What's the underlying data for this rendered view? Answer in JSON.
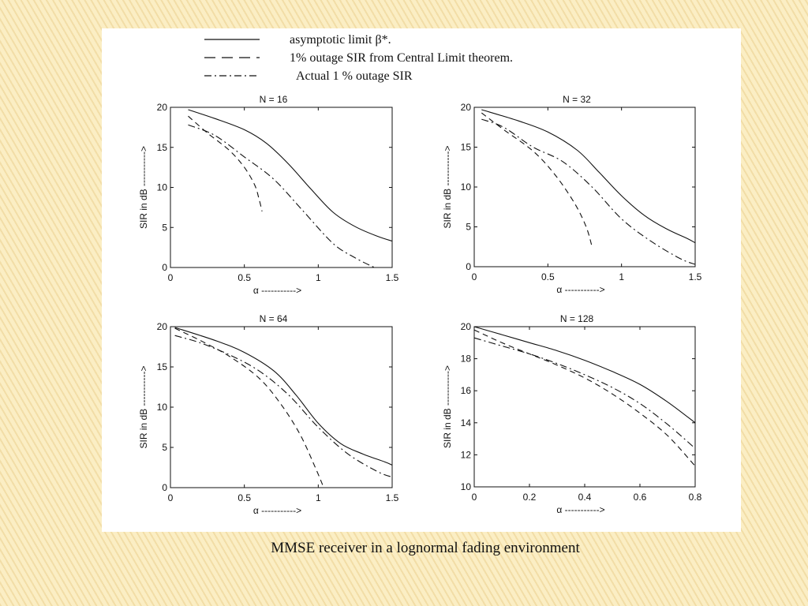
{
  "caption": "MMSE receiver in a lognormal fading environment",
  "legend": [
    {
      "label": "asymptotic limit β*.",
      "style": "solid"
    },
    {
      "label": "1% outage SIR from Central Limit theorem.",
      "style": "dashed"
    },
    {
      "label": "Actual 1 % outage SIR",
      "style": "dashdot"
    }
  ],
  "colors": {
    "background": "#fbeec4",
    "panel": "#ffffff",
    "ink": "#111111"
  },
  "chart_data": [
    {
      "type": "line",
      "title": "N = 16",
      "xlabel": "α ----------->",
      "ylabel": "SIR in dB ----------->",
      "xlim": [
        0,
        1.5
      ],
      "ylim": [
        0,
        20
      ],
      "xticks": [
        0,
        0.5,
        1,
        1.5
      ],
      "xticklabels": [
        "0",
        "0.5",
        "1",
        "1.5"
      ],
      "yticks": [
        0,
        5,
        10,
        15,
        20
      ],
      "yticklabels": [
        "0",
        "5",
        "10",
        "15",
        "20"
      ],
      "series": [
        {
          "name": "asymptotic limit β*.",
          "style": "solid",
          "x": [
            0.12,
            0.3,
            0.5,
            0.65,
            0.8,
            0.95,
            1.1,
            1.25,
            1.4,
            1.5
          ],
          "y": [
            19.7,
            18.6,
            17.2,
            15.5,
            12.9,
            9.8,
            6.9,
            5.1,
            3.9,
            3.3
          ]
        },
        {
          "name": "1% outage SIR from Central Limit theorem.",
          "style": "dashed",
          "x": [
            0.12,
            0.25,
            0.4,
            0.5,
            0.57,
            0.6,
            0.62
          ],
          "y": [
            18.9,
            16.8,
            14.6,
            12.5,
            10.3,
            8.5,
            7.0
          ]
        },
        {
          "name": "Actual 1 % outage SIR",
          "style": "dashdot",
          "x": [
            0.12,
            0.3,
            0.5,
            0.7,
            0.9,
            1.1,
            1.25,
            1.38
          ],
          "y": [
            17.8,
            16.5,
            13.8,
            11.0,
            7.0,
            3.0,
            1.2,
            0.0
          ]
        }
      ]
    },
    {
      "type": "line",
      "title": "N = 32",
      "xlabel": "α ----------->",
      "ylabel": "SIR in dB ----------->",
      "xlim": [
        0,
        1.5
      ],
      "ylim": [
        0,
        20
      ],
      "xticks": [
        0,
        0.5,
        1,
        1.5
      ],
      "xticklabels": [
        "0",
        "0.5",
        "1",
        "1.5"
      ],
      "yticks": [
        0,
        5,
        10,
        15,
        20
      ],
      "yticklabels": [
        "0",
        "5",
        "10",
        "15",
        "20"
      ],
      "series": [
        {
          "name": "asymptotic limit β*.",
          "style": "solid",
          "x": [
            0.05,
            0.3,
            0.5,
            0.7,
            0.85,
            1.0,
            1.15,
            1.3,
            1.45,
            1.5
          ],
          "y": [
            19.7,
            18.3,
            16.9,
            14.6,
            11.8,
            8.9,
            6.5,
            4.8,
            3.5,
            3.0
          ]
        },
        {
          "name": "1% outage SIR from Central Limit theorem.",
          "style": "dashed",
          "x": [
            0.05,
            0.2,
            0.4,
            0.55,
            0.68,
            0.76,
            0.8
          ],
          "y": [
            19.3,
            17.2,
            14.5,
            11.5,
            8.0,
            5.0,
            2.5
          ]
        },
        {
          "name": "Actual 1 % outage SIR",
          "style": "dashdot",
          "x": [
            0.05,
            0.2,
            0.4,
            0.6,
            0.8,
            1.0,
            1.2,
            1.4,
            1.5
          ],
          "y": [
            18.5,
            17.5,
            15.0,
            13.2,
            10.0,
            6.0,
            3.2,
            1.0,
            0.3
          ]
        }
      ]
    },
    {
      "type": "line",
      "title": "N = 64",
      "xlabel": "α ----------->",
      "ylabel": "SIR in dB ----------->",
      "xlim": [
        0,
        1.5
      ],
      "ylim": [
        0,
        20
      ],
      "xticks": [
        0,
        0.5,
        1,
        1.5
      ],
      "xticklabels": [
        "0",
        "0.5",
        "1",
        "1.5"
      ],
      "yticks": [
        0,
        5,
        10,
        15,
        20
      ],
      "yticklabels": [
        "0",
        "5",
        "10",
        "15",
        "20"
      ],
      "series": [
        {
          "name": "asymptotic limit β*.",
          "style": "solid",
          "x": [
            0.03,
            0.3,
            0.5,
            0.7,
            0.85,
            1.0,
            1.15,
            1.3,
            1.45,
            1.5
          ],
          "y": [
            19.9,
            18.3,
            16.8,
            14.5,
            11.5,
            8.0,
            5.5,
            4.2,
            3.2,
            2.8
          ]
        },
        {
          "name": "1% outage SIR from Central Limit theorem.",
          "style": "dashed",
          "x": [
            0.03,
            0.2,
            0.4,
            0.6,
            0.75,
            0.88,
            0.98,
            1.03
          ],
          "y": [
            19.8,
            18.3,
            16.3,
            13.6,
            10.3,
            6.5,
            2.5,
            0.3
          ]
        },
        {
          "name": "Actual 1 % outage SIR",
          "style": "dashdot",
          "x": [
            0.03,
            0.2,
            0.4,
            0.6,
            0.8,
            1.0,
            1.2,
            1.4,
            1.5
          ],
          "y": [
            18.9,
            18.0,
            16.5,
            14.5,
            11.5,
            7.5,
            4.2,
            2.0,
            1.3
          ]
        }
      ]
    },
    {
      "type": "line",
      "title": "N = 128",
      "xlabel": "α ----------->",
      "ylabel": "SIR in dB ----------->",
      "xlim": [
        0,
        0.8
      ],
      "ylim": [
        10,
        20
      ],
      "xticks": [
        0,
        0.2,
        0.4,
        0.6,
        0.8
      ],
      "xticklabels": [
        "0",
        "0.2",
        "0.4",
        "0.6",
        "0.8"
      ],
      "yticks": [
        10,
        12,
        14,
        16,
        18,
        20
      ],
      "yticklabels": [
        "10",
        "12",
        "14",
        "16",
        "18",
        "20"
      ],
      "series": [
        {
          "name": "asymptotic limit β*.",
          "style": "solid",
          "x": [
            0.0,
            0.1,
            0.2,
            0.3,
            0.4,
            0.5,
            0.6,
            0.7,
            0.8
          ],
          "y": [
            20.0,
            19.5,
            19.0,
            18.5,
            17.9,
            17.2,
            16.4,
            15.3,
            14.0
          ]
        },
        {
          "name": "1% outage SIR from Central Limit theorem.",
          "style": "dashed",
          "x": [
            0.0,
            0.1,
            0.2,
            0.3,
            0.4,
            0.5,
            0.6,
            0.7,
            0.8
          ],
          "y": [
            19.8,
            19.0,
            18.3,
            17.6,
            16.8,
            15.8,
            14.6,
            13.2,
            11.3
          ]
        },
        {
          "name": "Actual 1 % outage SIR",
          "style": "dashdot",
          "x": [
            0.0,
            0.1,
            0.2,
            0.3,
            0.4,
            0.5,
            0.6,
            0.7,
            0.8
          ],
          "y": [
            19.3,
            18.8,
            18.3,
            17.7,
            17.0,
            16.2,
            15.2,
            13.9,
            12.4
          ]
        }
      ]
    }
  ]
}
